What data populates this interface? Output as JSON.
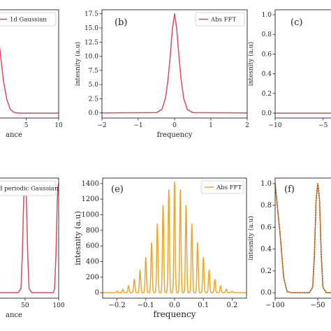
{
  "colors": {
    "red": "#d94a5f",
    "orange": "#f0a526",
    "brown": "#8b3a1c",
    "axis": "#222222"
  },
  "chart_data": [
    {
      "id": "a",
      "panel_label": "",
      "type": "line",
      "xlabel": "ance",
      "ylabel": "",
      "xlim": [
        -1.2,
        10
      ],
      "ylim": [
        -0.05,
        1.05
      ],
      "xticks": [
        5,
        10
      ],
      "yticks": [],
      "legend": "1d Gaussian",
      "legend_position": "top-right",
      "grid": false,
      "series": [
        {
          "name": "1d Gaussian",
          "color": "red",
          "x": [
            -1.2,
            -0.5,
            0,
            0.5,
            1,
            1.5,
            2,
            2.5,
            3,
            3.5,
            4,
            5,
            6,
            8,
            10
          ],
          "y": [
            0.49,
            0.88,
            1.0,
            0.88,
            0.61,
            0.32,
            0.14,
            0.044,
            0.011,
            0.002,
            0.0,
            0.0,
            0.0,
            0.0,
            0.0
          ]
        }
      ]
    },
    {
      "id": "b",
      "panel_label": "(b)",
      "type": "line",
      "xlabel": "frequency",
      "ylabel": "intesnity (a.u)",
      "xlim": [
        -2,
        2
      ],
      "ylim": [
        -0.9,
        18.2
      ],
      "xticks": [
        -2,
        -1,
        0,
        1,
        2
      ],
      "yticks": [
        0.0,
        2.5,
        5.0,
        7.5,
        10.0,
        12.5,
        15.0,
        17.5
      ],
      "legend": "Abs FFT",
      "legend_position": "top-right",
      "grid": false,
      "series": [
        {
          "name": "Abs FFT",
          "color": "red",
          "x": [
            -2,
            -0.5,
            -0.35,
            -0.25,
            -0.18,
            -0.12,
            -0.06,
            0,
            0.06,
            0.12,
            0.18,
            0.25,
            0.35,
            0.5,
            2
          ],
          "y": [
            0.0,
            0.05,
            0.6,
            2.6,
            5.9,
            10.0,
            14.8,
            17.5,
            14.8,
            10.0,
            5.9,
            2.6,
            0.6,
            0.05,
            0.0
          ]
        }
      ]
    },
    {
      "id": "c",
      "panel_label": "(c)",
      "type": "line",
      "xlabel": "",
      "ylabel": "intesnity (a.u)",
      "xlim": [
        -10,
        -2
      ],
      "ylim": [
        -0.05,
        1.05
      ],
      "xticks": [
        -10,
        -5
      ],
      "yticks": [
        0.0,
        0.2,
        0.4,
        0.6,
        0.8,
        1.0
      ],
      "legend": "",
      "grid": false,
      "series": [
        {
          "color": "red",
          "x": [
            -10,
            -6,
            -4,
            -3.5,
            -3,
            -2.5,
            -2
          ],
          "y": [
            0.0,
            0.0,
            0.0,
            0.005,
            0.012,
            0.022,
            0.035
          ]
        }
      ]
    },
    {
      "id": "d",
      "panel_label": "",
      "type": "line",
      "xlabel": "ance",
      "ylabel": "",
      "xlim": [
        -8,
        100
      ],
      "ylim": [
        -0.05,
        1.05
      ],
      "xticks": [
        50,
        100
      ],
      "yticks": [],
      "legend": "d periodic Gaussian",
      "legend_position": "top-right",
      "grid": false,
      "series": [
        {
          "name": "d periodic Gaussian",
          "color": "red",
          "x": [
            -8,
            0,
            4,
            8,
            40,
            44,
            46,
            48,
            49,
            50,
            51,
            52,
            54,
            56,
            60,
            92,
            94,
            96,
            98,
            99,
            100
          ],
          "y": [
            0.06,
            1.0,
            0.06,
            0.0,
            0.0,
            0.04,
            0.35,
            0.85,
            0.97,
            1.0,
            0.97,
            0.85,
            0.35,
            0.04,
            0.0,
            0.0,
            0.04,
            0.35,
            0.85,
            0.97,
            1.0
          ]
        }
      ]
    },
    {
      "id": "e",
      "panel_label": "(e)",
      "type": "line",
      "xlabel": "frequency",
      "ylabel": "intesnity (a.u)",
      "xlim": [
        -0.25,
        0.25
      ],
      "ylim": [
        -70,
        1470
      ],
      "xticks": [
        -0.2,
        -0.1,
        0.0,
        0.1,
        0.2
      ],
      "yticks": [
        0,
        200,
        400,
        600,
        800,
        1000,
        1200,
        1400
      ],
      "legend": "Abs FFT",
      "legend_position": "top-right",
      "grid": false,
      "series": [
        {
          "name": "Abs FFT",
          "color": "orange",
          "peak_spacing": 0.02,
          "peaks_x": [
            -0.2,
            -0.18,
            -0.16,
            -0.14,
            -0.12,
            -0.1,
            -0.08,
            -0.06,
            -0.04,
            -0.02,
            0.0,
            0.02,
            0.04,
            0.06,
            0.08,
            0.1,
            0.12,
            0.14,
            0.16,
            0.18,
            0.2
          ],
          "peaks_y": [
            20,
            45,
            90,
            170,
            290,
            450,
            640,
            880,
            1120,
            1320,
            1420,
            1320,
            1120,
            880,
            640,
            450,
            290,
            170,
            90,
            45,
            20
          ]
        }
      ]
    },
    {
      "id": "f",
      "panel_label": "(f)",
      "type": "line",
      "xlabel": "",
      "ylabel": "intesnity (a.u)",
      "xlim": [
        -100,
        -10
      ],
      "ylim": [
        -0.05,
        1.05
      ],
      "xticks": [
        -100,
        -50
      ],
      "yticks": [
        0.0,
        0.2,
        0.4,
        0.6,
        0.8,
        1.0
      ],
      "legend": "",
      "grid": false,
      "series": [
        {
          "color": "brown",
          "x": [
            -100,
            -94,
            -90,
            -86,
            -80,
            -60,
            -56,
            -54,
            -52,
            -50,
            -48,
            -46,
            -44,
            -40,
            -20,
            -16,
            -14,
            -12,
            -10
          ],
          "y": [
            1.0,
            0.52,
            0.14,
            0.01,
            0.0,
            0.0,
            0.05,
            0.35,
            0.85,
            1.0,
            0.85,
            0.35,
            0.05,
            0.0,
            0.0,
            0.05,
            0.35,
            0.85,
            1.0
          ]
        },
        {
          "color": "orange",
          "x": [
            -100,
            -94,
            -90,
            -86,
            -80,
            -60,
            -56,
            -54,
            -52,
            -50,
            -48,
            -46,
            -44,
            -40,
            -20,
            -16,
            -14,
            -12,
            -10
          ],
          "y": [
            1.0,
            0.52,
            0.14,
            0.01,
            0.0,
            0.0,
            0.05,
            0.35,
            0.85,
            1.0,
            0.85,
            0.35,
            0.05,
            0.0,
            0.0,
            0.05,
            0.35,
            0.85,
            1.0
          ]
        }
      ]
    }
  ]
}
